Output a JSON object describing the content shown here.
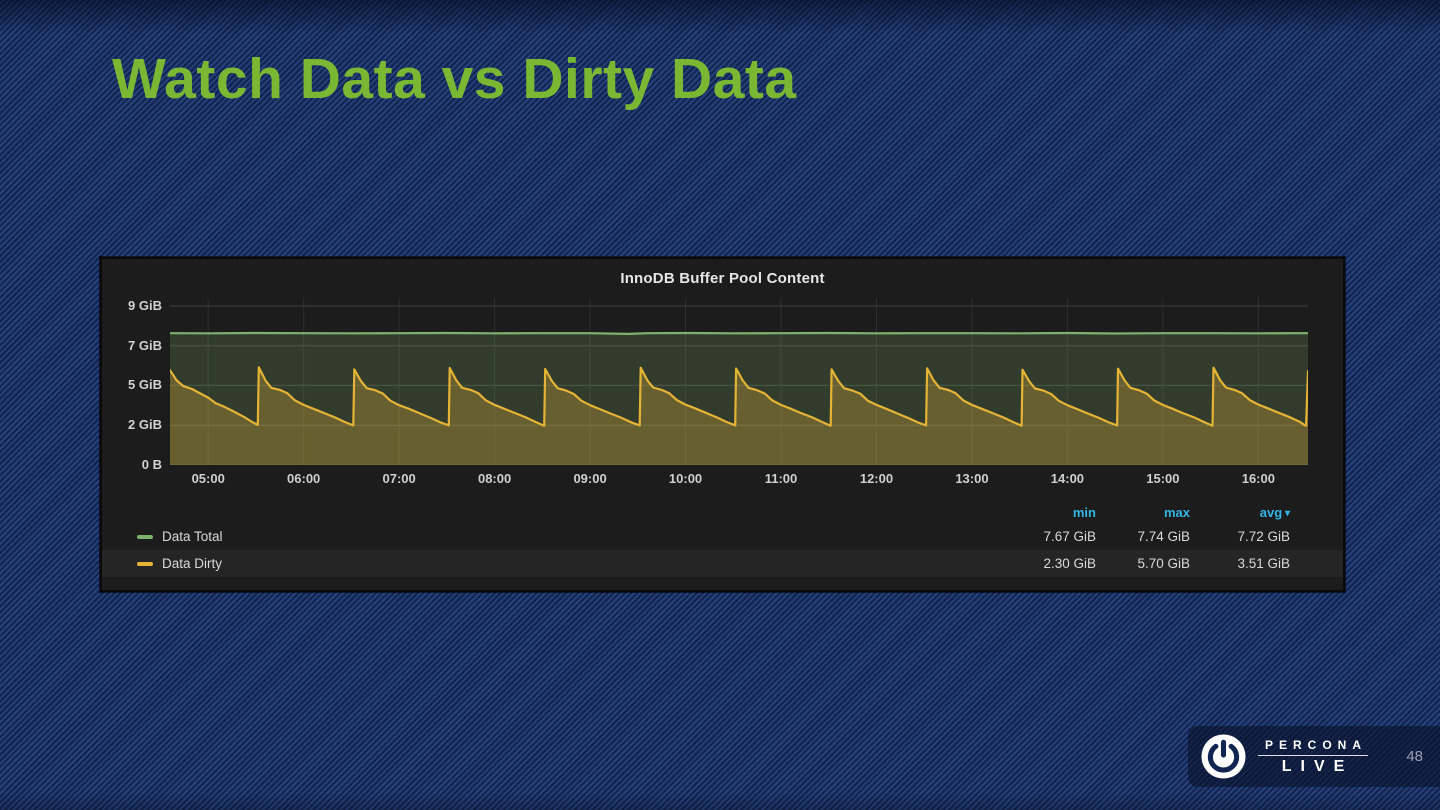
{
  "slide": {
    "title": "Watch Data vs Dirty Data",
    "page_number": "48",
    "colors": {
      "title_green": "#7ab733",
      "background_blue": "#20407a",
      "background_stripe": "#15265a"
    }
  },
  "branding": {
    "name_top": "PERCONA",
    "name_bottom": "LIVE",
    "icon": "power-icon"
  },
  "chart_data": {
    "type": "area",
    "title": "InnoDB Buffer Pool Content",
    "xlabel": "",
    "ylabel": "",
    "x_unit": "time of day (hours)",
    "xlim": [
      4.6,
      16.52
    ],
    "ylim": [
      0,
      9.78
    ],
    "grid": true,
    "legend_position": "bottom-table",
    "legend_columns": [
      "min",
      "max",
      "avg"
    ],
    "legend_sort_column": "avg",
    "x_ticks": [
      {
        "t": 5,
        "label": "05:00"
      },
      {
        "t": 6,
        "label": "06:00"
      },
      {
        "t": 7,
        "label": "07:00"
      },
      {
        "t": 8,
        "label": "08:00"
      },
      {
        "t": 9,
        "label": "09:00"
      },
      {
        "t": 10,
        "label": "10:00"
      },
      {
        "t": 11,
        "label": "11:00"
      },
      {
        "t": 12,
        "label": "12:00"
      },
      {
        "t": 13,
        "label": "13:00"
      },
      {
        "t": 14,
        "label": "14:00"
      },
      {
        "t": 15,
        "label": "15:00"
      },
      {
        "t": 16,
        "label": "16:00"
      }
    ],
    "y_ticks": [
      {
        "v": 9.31,
        "label": "9 GiB"
      },
      {
        "v": 6.98,
        "label": "7 GiB"
      },
      {
        "v": 4.66,
        "label": "5 GiB"
      },
      {
        "v": 2.33,
        "label": "2 GiB"
      },
      {
        "v": 0,
        "label": "0 B"
      }
    ],
    "series": [
      {
        "name": "Data Total",
        "color": "#7eb26d",
        "fill": "rgba(126,178,109,0.22)",
        "row_highlight": false,
        "stats": {
          "min": "7.67 GiB",
          "max": "7.74 GiB",
          "avg": "7.72 GiB"
        },
        "points": [
          [
            4.6,
            7.72
          ],
          [
            5.0,
            7.71
          ],
          [
            5.5,
            7.73
          ],
          [
            6.0,
            7.72
          ],
          [
            6.5,
            7.71
          ],
          [
            7.0,
            7.72
          ],
          [
            7.5,
            7.73
          ],
          [
            8.0,
            7.71
          ],
          [
            8.5,
            7.72
          ],
          [
            9.0,
            7.72
          ],
          [
            9.4,
            7.68
          ],
          [
            9.6,
            7.72
          ],
          [
            10.0,
            7.73
          ],
          [
            10.5,
            7.71
          ],
          [
            11.0,
            7.72
          ],
          [
            11.5,
            7.73
          ],
          [
            12.0,
            7.71
          ],
          [
            12.5,
            7.72
          ],
          [
            13.0,
            7.72
          ],
          [
            13.5,
            7.71
          ],
          [
            14.0,
            7.73
          ],
          [
            14.5,
            7.7
          ],
          [
            15.0,
            7.72
          ],
          [
            15.5,
            7.72
          ],
          [
            16.0,
            7.71
          ],
          [
            16.52,
            7.72
          ]
        ]
      },
      {
        "name": "Data Dirty",
        "color": "#e5b335",
        "fill": "rgba(229,179,53,0.30)",
        "row_highlight": true,
        "stats": {
          "min": "2.30 GiB",
          "max": "5.70 GiB",
          "avg": "3.51 GiB"
        },
        "points": [
          [
            4.6,
            5.55
          ],
          [
            4.67,
            4.95
          ],
          [
            4.74,
            4.62
          ],
          [
            4.83,
            4.45
          ],
          [
            4.92,
            4.18
          ],
          [
            5.0,
            3.95
          ],
          [
            5.08,
            3.62
          ],
          [
            5.18,
            3.38
          ],
          [
            5.28,
            3.1
          ],
          [
            5.38,
            2.8
          ],
          [
            5.46,
            2.52
          ],
          [
            5.52,
            2.35
          ],
          [
            5.53,
            5.72
          ],
          [
            5.6,
            4.95
          ],
          [
            5.66,
            4.52
          ],
          [
            5.75,
            4.4
          ],
          [
            5.83,
            4.2
          ],
          [
            5.91,
            3.78
          ],
          [
            6.0,
            3.52
          ],
          [
            6.1,
            3.3
          ],
          [
            6.21,
            3.05
          ],
          [
            6.33,
            2.78
          ],
          [
            6.43,
            2.52
          ],
          [
            6.52,
            2.32
          ],
          [
            6.53,
            5.6
          ],
          [
            6.6,
            4.92
          ],
          [
            6.66,
            4.5
          ],
          [
            6.75,
            4.38
          ],
          [
            6.83,
            4.18
          ],
          [
            6.91,
            3.76
          ],
          [
            7.0,
            3.5
          ],
          [
            7.1,
            3.3
          ],
          [
            7.21,
            3.04
          ],
          [
            7.33,
            2.76
          ],
          [
            7.43,
            2.5
          ],
          [
            7.52,
            2.32
          ],
          [
            7.53,
            5.68
          ],
          [
            7.6,
            4.95
          ],
          [
            7.66,
            4.52
          ],
          [
            7.75,
            4.4
          ],
          [
            7.83,
            4.2
          ],
          [
            7.91,
            3.78
          ],
          [
            8.0,
            3.52
          ],
          [
            8.1,
            3.3
          ],
          [
            8.21,
            3.05
          ],
          [
            8.33,
            2.78
          ],
          [
            8.43,
            2.52
          ],
          [
            8.52,
            2.3
          ],
          [
            8.53,
            5.62
          ],
          [
            8.6,
            4.92
          ],
          [
            8.66,
            4.5
          ],
          [
            8.75,
            4.36
          ],
          [
            8.83,
            4.16
          ],
          [
            8.91,
            3.76
          ],
          [
            9.0,
            3.5
          ],
          [
            9.1,
            3.28
          ],
          [
            9.21,
            3.02
          ],
          [
            9.33,
            2.76
          ],
          [
            9.43,
            2.5
          ],
          [
            9.52,
            2.32
          ],
          [
            9.53,
            5.7
          ],
          [
            9.6,
            4.96
          ],
          [
            9.66,
            4.54
          ],
          [
            9.75,
            4.4
          ],
          [
            9.83,
            4.2
          ],
          [
            9.91,
            3.8
          ],
          [
            10.0,
            3.54
          ],
          [
            10.1,
            3.32
          ],
          [
            10.21,
            3.06
          ],
          [
            10.33,
            2.78
          ],
          [
            10.43,
            2.52
          ],
          [
            10.52,
            2.32
          ],
          [
            10.53,
            5.65
          ],
          [
            10.6,
            4.94
          ],
          [
            10.66,
            4.52
          ],
          [
            10.75,
            4.38
          ],
          [
            10.83,
            4.18
          ],
          [
            10.91,
            3.78
          ],
          [
            11.0,
            3.52
          ],
          [
            11.1,
            3.3
          ],
          [
            11.21,
            3.04
          ],
          [
            11.33,
            2.78
          ],
          [
            11.43,
            2.52
          ],
          [
            11.52,
            2.3
          ],
          [
            11.53,
            5.6
          ],
          [
            11.6,
            4.92
          ],
          [
            11.66,
            4.5
          ],
          [
            11.75,
            4.36
          ],
          [
            11.83,
            4.18
          ],
          [
            11.91,
            3.76
          ],
          [
            12.0,
            3.52
          ],
          [
            12.1,
            3.3
          ],
          [
            12.21,
            3.04
          ],
          [
            12.33,
            2.76
          ],
          [
            12.43,
            2.5
          ],
          [
            12.52,
            2.32
          ],
          [
            12.53,
            5.66
          ],
          [
            12.6,
            4.94
          ],
          [
            12.66,
            4.52
          ],
          [
            12.75,
            4.4
          ],
          [
            12.83,
            4.2
          ],
          [
            12.91,
            3.78
          ],
          [
            13.0,
            3.52
          ],
          [
            13.1,
            3.3
          ],
          [
            13.21,
            3.05
          ],
          [
            13.33,
            2.78
          ],
          [
            13.43,
            2.52
          ],
          [
            13.52,
            2.3
          ],
          [
            13.53,
            5.58
          ],
          [
            13.6,
            4.9
          ],
          [
            13.66,
            4.48
          ],
          [
            13.75,
            4.36
          ],
          [
            13.83,
            4.16
          ],
          [
            13.91,
            3.76
          ],
          [
            14.0,
            3.5
          ],
          [
            14.1,
            3.28
          ],
          [
            14.21,
            3.02
          ],
          [
            14.33,
            2.76
          ],
          [
            14.43,
            2.5
          ],
          [
            14.52,
            2.32
          ],
          [
            14.53,
            5.64
          ],
          [
            14.6,
            4.94
          ],
          [
            14.66,
            4.52
          ],
          [
            14.75,
            4.38
          ],
          [
            14.83,
            4.18
          ],
          [
            14.91,
            3.78
          ],
          [
            15.0,
            3.52
          ],
          [
            15.1,
            3.3
          ],
          [
            15.21,
            3.04
          ],
          [
            15.33,
            2.78
          ],
          [
            15.43,
            2.52
          ],
          [
            15.52,
            2.3
          ],
          [
            15.53,
            5.7
          ],
          [
            15.6,
            4.96
          ],
          [
            15.66,
            4.54
          ],
          [
            15.75,
            4.4
          ],
          [
            15.83,
            4.2
          ],
          [
            15.91,
            3.8
          ],
          [
            16.0,
            3.54
          ],
          [
            16.1,
            3.32
          ],
          [
            16.21,
            3.06
          ],
          [
            16.33,
            2.8
          ],
          [
            16.43,
            2.54
          ],
          [
            16.49,
            2.32
          ],
          [
            16.5,
            2.3
          ],
          [
            16.52,
            5.5
          ]
        ]
      }
    ]
  }
}
